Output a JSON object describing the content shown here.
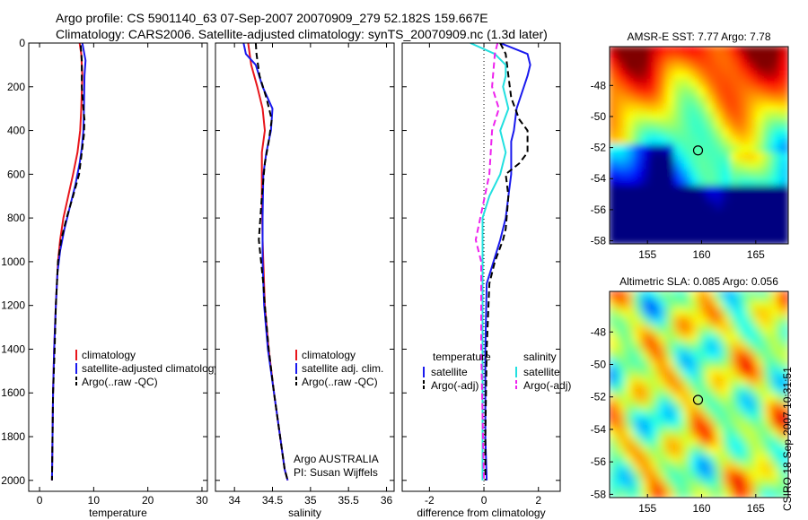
{
  "header": {
    "line1": "Argo profile: CS 5901140_63 07-Sep-2007 20070909_279 52.182S 159.667E",
    "line2": "Climatology: CARS2006. Satellite-adjusted climatology: synTS_20070909.nc (1.3d later)"
  },
  "footer_stamp": "CSIRO 18-Sep-2007 10:31:51",
  "colors": {
    "red": "#e8151b",
    "blue": "#1a1aee",
    "black": "#000000",
    "cyan": "#22e0e0",
    "magenta": "#ee22ee"
  },
  "chart_data": [
    {
      "type": "line",
      "xlabel": "temperature",
      "ylabel": "",
      "xlim": [
        -2,
        31
      ],
      "ylim": [
        2050,
        0
      ],
      "xticks": [
        0,
        10,
        20,
        30
      ],
      "yticks": [
        0,
        200,
        400,
        600,
        800,
        1000,
        1200,
        1400,
        1600,
        1800,
        2000
      ],
      "legend": [
        "climatology",
        "satellite-adjusted climatology",
        "Argo(..raw -QC)"
      ],
      "series": [
        {
          "name": "climatology",
          "color": "red",
          "style": "solid",
          "x": [
            7.4,
            7.7,
            7.9,
            7.7,
            7.5,
            7.0,
            6.2,
            5.3,
            4.4,
            3.8,
            3.4,
            3.0,
            2.7,
            2.5,
            2.4,
            2.3
          ],
          "y": [
            0,
            50,
            150,
            300,
            400,
            500,
            600,
            700,
            800,
            900,
            1000,
            1200,
            1400,
            1600,
            1800,
            2000
          ]
        },
        {
          "name": "satellite-adjusted climatology",
          "color": "blue",
          "style": "solid",
          "x": [
            7.9,
            8.5,
            8.3,
            8.2,
            8.1,
            7.8,
            7.4,
            6.6,
            5.6,
            4.6,
            3.8,
            3.3,
            3.0,
            2.7,
            2.5,
            2.4,
            2.3
          ],
          "y": [
            0,
            80,
            150,
            300,
            400,
            480,
            550,
            650,
            750,
            850,
            950,
            1050,
            1200,
            1400,
            1600,
            1800,
            2000
          ]
        },
        {
          "name": "Argo(..raw -QC)",
          "color": "black",
          "style": "dash",
          "x": [
            7.6,
            7.8,
            7.8,
            8.1,
            8.3,
            8.2,
            7.8,
            7.3,
            6.2,
            5.0,
            4.0,
            3.4,
            3.0,
            2.8,
            2.5,
            2.4,
            2.3
          ],
          "y": [
            10,
            80,
            200,
            300,
            350,
            420,
            500,
            600,
            700,
            800,
            900,
            1000,
            1200,
            1400,
            1600,
            1800,
            2000
          ]
        }
      ]
    },
    {
      "type": "line",
      "xlabel": "salinity",
      "xlim": [
        33.75,
        36.1
      ],
      "ylim": [
        2050,
        0
      ],
      "xticks": [
        34,
        34.5,
        35,
        35.5,
        36
      ],
      "legend": [
        "climatology",
        "satellite adj. clim.",
        "Argo(..raw -QC)"
      ],
      "annotation": [
        "Argo AUSTRALIA",
        "PI: Susan Wijffels"
      ],
      "series": [
        {
          "name": "climatology",
          "color": "red",
          "style": "solid",
          "x": [
            34.18,
            34.22,
            34.3,
            34.37,
            34.4,
            34.36,
            34.36,
            34.37,
            34.38,
            34.4,
            34.45,
            34.52,
            34.6,
            34.66,
            34.7
          ],
          "y": [
            0,
            100,
            200,
            300,
            400,
            500,
            700,
            900,
            1000,
            1200,
            1400,
            1600,
            1800,
            1950,
            2000
          ]
        },
        {
          "name": "satellite adj. clim.",
          "color": "blue",
          "style": "solid",
          "x": [
            34.12,
            34.15,
            34.28,
            34.37,
            34.5,
            34.48,
            34.42,
            34.38,
            34.37,
            34.37,
            34.39,
            34.44,
            34.52,
            34.6,
            34.66,
            34.7
          ],
          "y": [
            0,
            50,
            100,
            200,
            300,
            400,
            500,
            600,
            800,
            1000,
            1200,
            1400,
            1600,
            1800,
            1950,
            2000
          ]
        },
        {
          "name": "Argo(..raw -QC)",
          "color": "black",
          "style": "dash",
          "x": [
            34.28,
            34.29,
            34.33,
            34.42,
            34.49,
            34.45,
            34.4,
            34.36,
            34.32,
            34.35,
            34.38,
            34.4,
            34.45,
            34.52,
            34.6,
            34.66,
            34.7
          ],
          "y": [
            0,
            50,
            150,
            250,
            350,
            450,
            550,
            700,
            900,
            1000,
            1100,
            1200,
            1400,
            1600,
            1800,
            1950,
            2000
          ]
        }
      ]
    },
    {
      "type": "line",
      "xlabel": "difference from climatology",
      "xlim": [
        -3,
        2.8
      ],
      "ylim": [
        2050,
        0
      ],
      "xticks": [
        -2,
        0,
        2
      ],
      "legend_columns": [
        {
          "heading": "temperature",
          "entries": [
            "satellite",
            "Argo(-adj)"
          ]
        },
        {
          "heading": "salinity",
          "entries": [
            "satellite",
            "Argo(-adj)"
          ]
        }
      ],
      "series": [
        {
          "name": "temperature satellite",
          "color": "blue",
          "style": "solid",
          "x": [
            0.6,
            1.6,
            1.7,
            1.6,
            1.2,
            1.1,
            1.0,
            1.0,
            1.0,
            0.9,
            0.8,
            0.6,
            0.35,
            0.1,
            0.05,
            0.05,
            0.1
          ],
          "y": [
            0,
            50,
            100,
            150,
            300,
            400,
            450,
            500,
            600,
            700,
            800,
            900,
            1000,
            1100,
            1400,
            1800,
            2000
          ]
        },
        {
          "name": "temperature Argo(-adj)",
          "color": "black",
          "style": "dash",
          "x": [
            0.6,
            0.8,
            0.9,
            1.0,
            1.3,
            1.6,
            1.6,
            1.3,
            0.8,
            0.9,
            0.8,
            0.7,
            0.4,
            0.2,
            0.1,
            0.05,
            0.05
          ],
          "y": [
            0,
            50,
            150,
            250,
            350,
            400,
            500,
            550,
            600,
            700,
            850,
            900,
            1000,
            1100,
            1400,
            1800,
            2000
          ]
        },
        {
          "name": "salinity satellite",
          "color": "cyan",
          "style": "solid",
          "x": [
            -0.5,
            0.4,
            0.8,
            0.8,
            0.7,
            0.9,
            0.6,
            0.8,
            0.6,
            0.2,
            -0.05,
            -0.05,
            -0.05
          ],
          "y": [
            0,
            50,
            100,
            150,
            200,
            300,
            400,
            500,
            600,
            700,
            800,
            1400,
            2000
          ]
        },
        {
          "name": "salinity Argo(-adj)",
          "color": "magenta",
          "style": "dash",
          "x": [
            0.5,
            0.4,
            0.3,
            0.55,
            0.3,
            0.2,
            -0.3,
            -0.1,
            -0.1,
            0.0
          ],
          "y": [
            0,
            50,
            200,
            300,
            400,
            600,
            900,
            1000,
            1400,
            2000
          ]
        }
      ]
    },
    {
      "type": "heatmap",
      "title": "AMSR-E SST: 7.77  Argo: 7.78",
      "xlim": [
        151.5,
        168
      ],
      "ylim": [
        -58.2,
        -45.5
      ],
      "xticks": [
        155,
        160,
        165
      ],
      "yticks": [
        -48,
        -50,
        -52,
        -54,
        -56,
        -58
      ],
      "marker": {
        "lon": 159.667,
        "lat": -52.182
      }
    },
    {
      "type": "heatmap",
      "title": "Altimetric SLA: 0.085  Argo: 0.056",
      "xlim": [
        151.5,
        168
      ],
      "ylim": [
        -58.2,
        -45.5
      ],
      "xticks": [
        155,
        160,
        165
      ],
      "yticks": [
        -48,
        -50,
        -52,
        -54,
        -56,
        -58
      ],
      "marker": {
        "lon": 159.667,
        "lat": -52.182
      }
    }
  ]
}
